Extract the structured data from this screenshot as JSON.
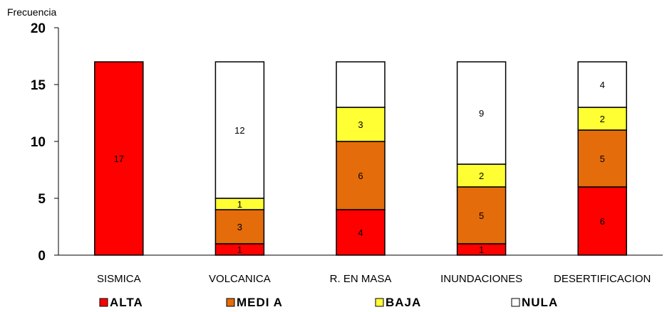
{
  "chart_data": {
    "type": "bar",
    "stacked": true,
    "title": "",
    "xlabel": "",
    "ylabel": "Frecuencia",
    "ylim": [
      0,
      20
    ],
    "yticks": [
      0,
      5,
      10,
      15,
      20
    ],
    "grid": false,
    "legend_position": "bottom",
    "categories": [
      "SISMICA",
      "VOLCANICA",
      "R. EN MASA",
      "INUNDACIONES",
      "DESERTIFICACION"
    ],
    "series": [
      {
        "name": "ALTA",
        "color": "#ff0000",
        "values": [
          17,
          1,
          4,
          1,
          6
        ],
        "labels": [
          "17",
          "1",
          "4",
          "1",
          "6"
        ]
      },
      {
        "name": "MEDIA",
        "color": "#e46c0a",
        "values": [
          0,
          3,
          6,
          5,
          5
        ],
        "labels": [
          "",
          "3",
          "6",
          "5",
          "5"
        ]
      },
      {
        "name": "BAJA",
        "color": "#ffff33",
        "values": [
          0,
          1,
          3,
          2,
          2
        ],
        "labels": [
          "",
          "1",
          "3",
          "2",
          "2"
        ]
      },
      {
        "name": "NULA",
        "color": "#ffffff",
        "values": [
          0,
          12,
          4,
          9,
          4
        ],
        "labels": [
          "",
          "12",
          "",
          "9",
          "4"
        ]
      }
    ],
    "legend_labels": [
      "ALTA",
      "MEDI A",
      "BAJA",
      "NULA"
    ]
  }
}
